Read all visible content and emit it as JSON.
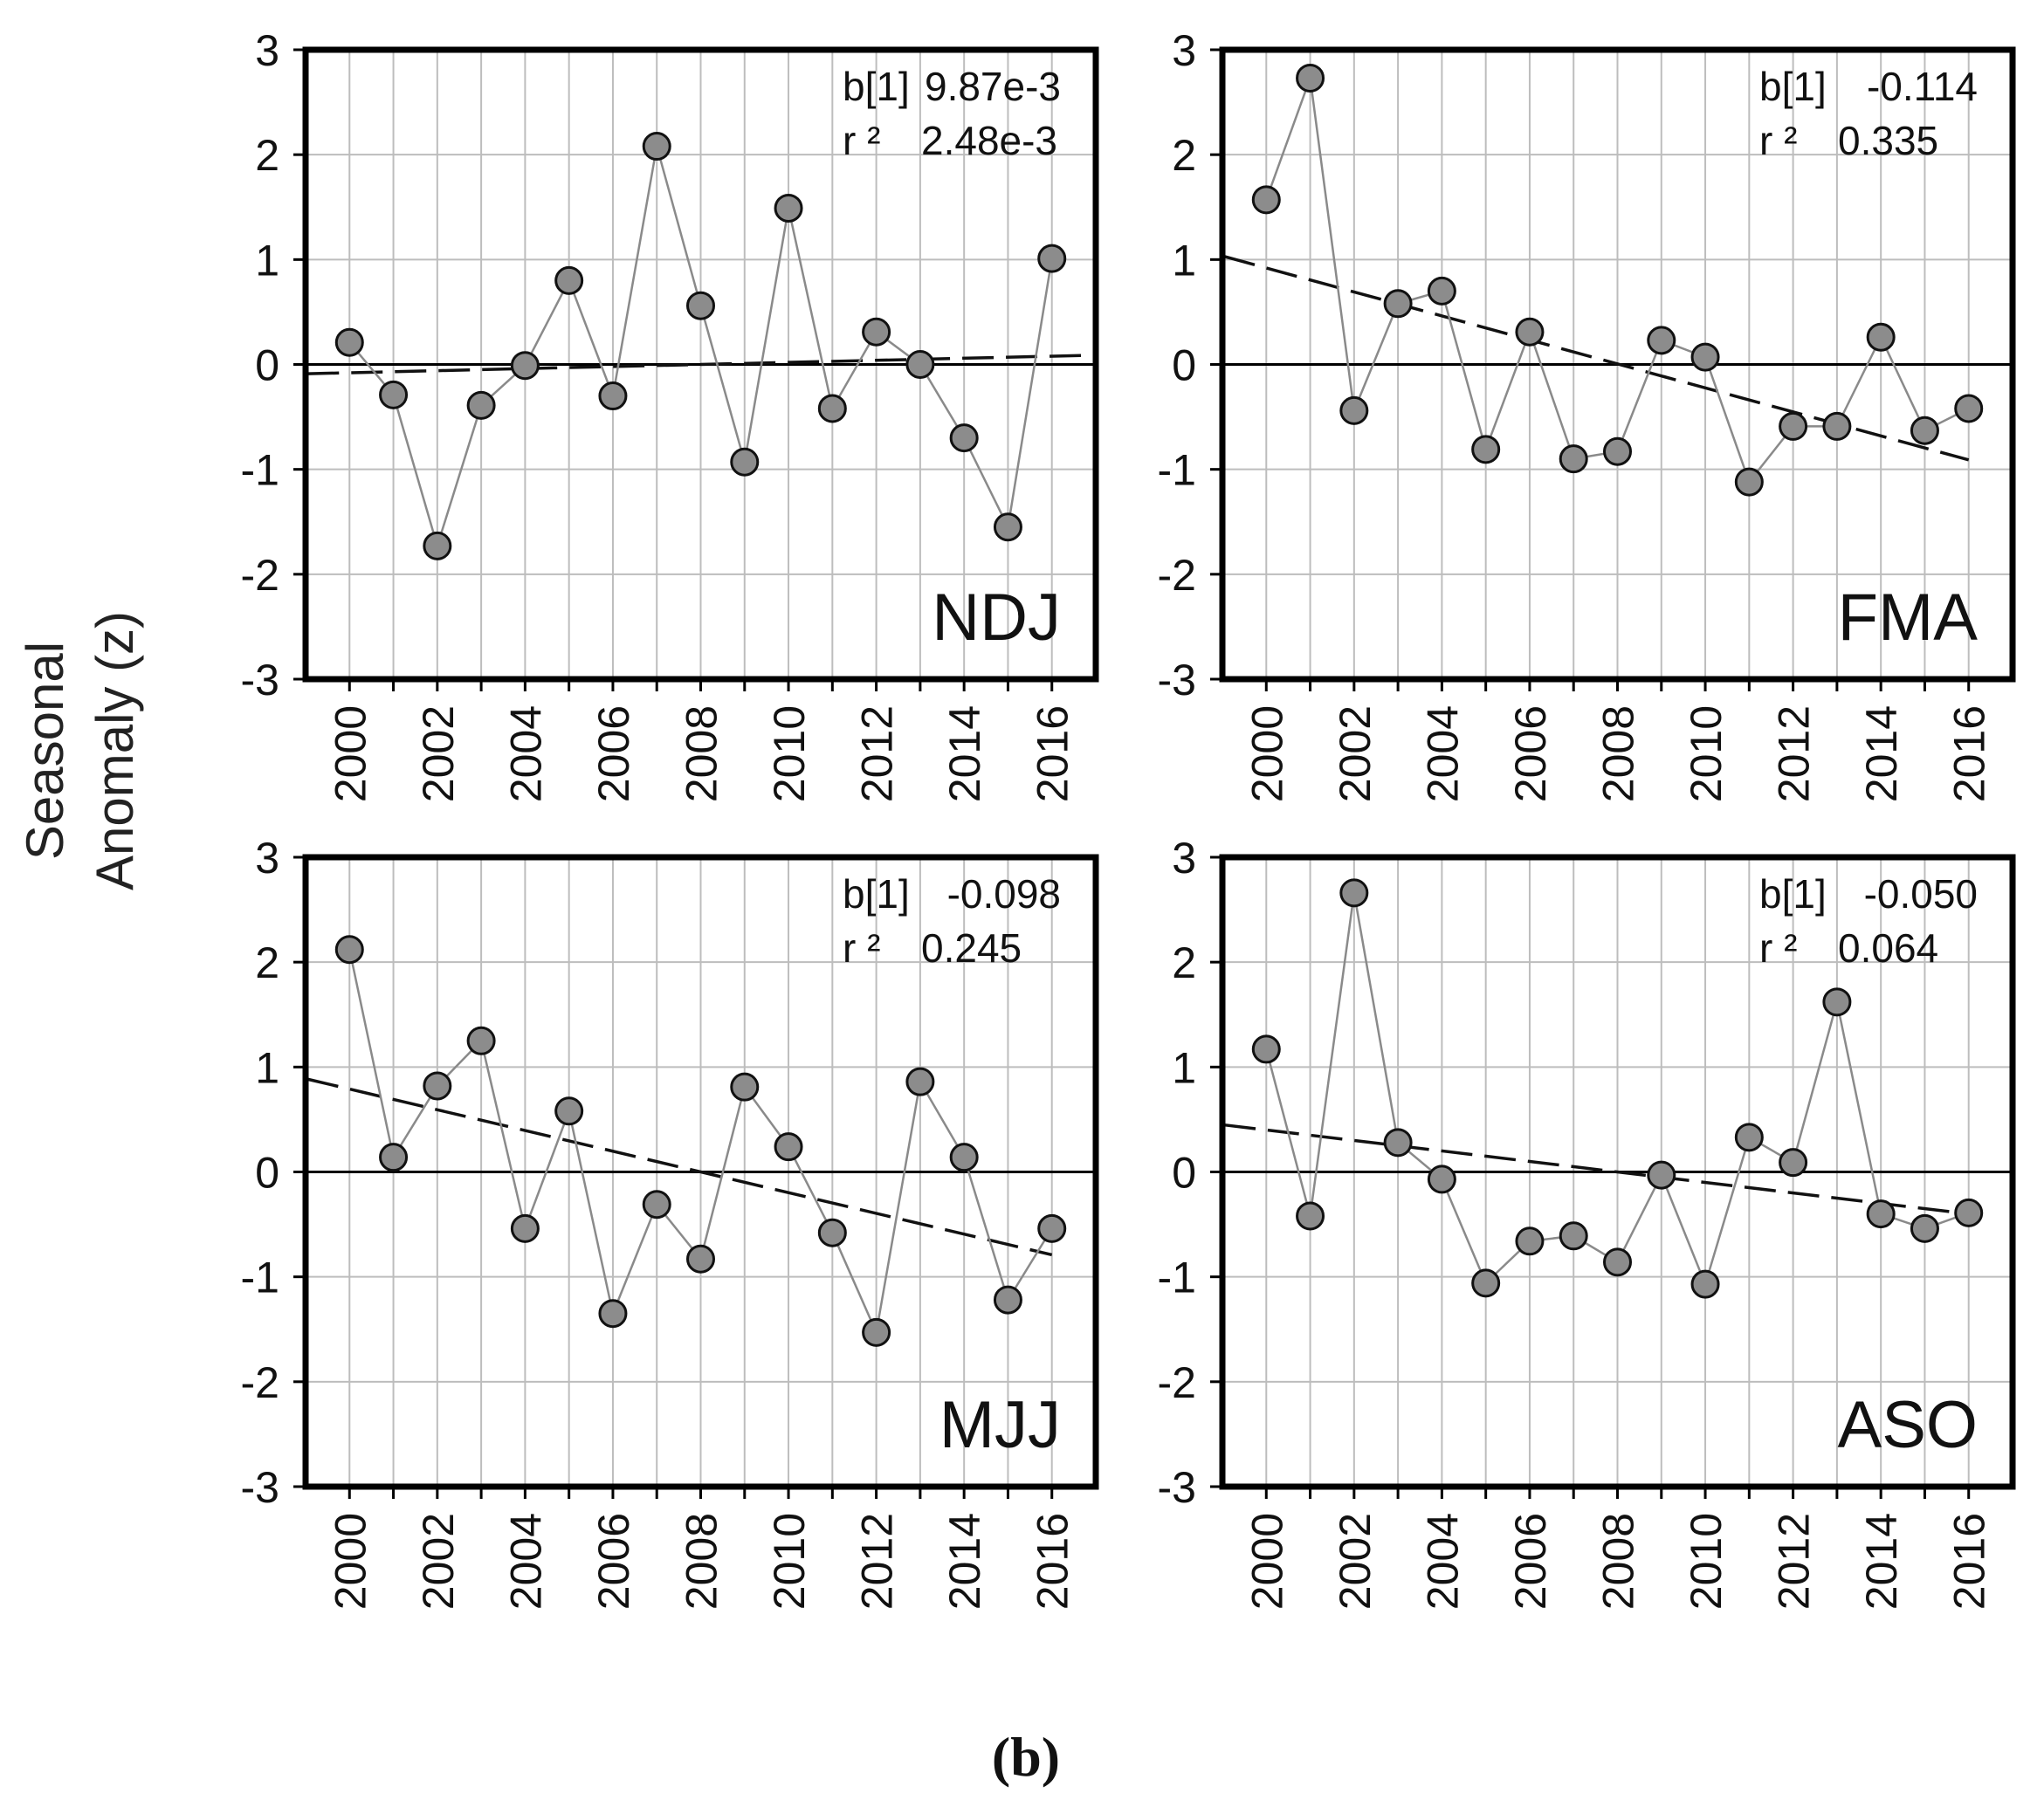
{
  "figure": {
    "y_axis_label": [
      "Seasonal",
      "Anomaly (z)"
    ],
    "caption": "(b)",
    "colors": {
      "marker_fill": "#8c8c8c",
      "marker_stroke": "#111111",
      "grid": "#bdbdbd",
      "series_line": "#8a8a8a",
      "trend_line": "#111111",
      "frame": "#000000"
    }
  },
  "chart_data": [
    {
      "type": "line",
      "season": "NDJ",
      "x": [
        2000,
        2001,
        2002,
        2003,
        2004,
        2005,
        2006,
        2007,
        2008,
        2009,
        2010,
        2011,
        2012,
        2013,
        2014,
        2015,
        2016
      ],
      "values": [
        0.21,
        -0.29,
        -1.73,
        -0.39,
        -0.01,
        0.8,
        -0.3,
        2.08,
        0.56,
        -0.93,
        1.49,
        -0.42,
        0.31,
        0.0,
        -0.7,
        -1.55,
        1.01
      ],
      "trend": [
        -0.079,
        0.079
      ],
      "stats": {
        "b_label": "b[1]",
        "b_value": "9.87e-3",
        "r2_label": "r ²",
        "r2_value": "2.48e-3"
      },
      "xticks": [
        2000,
        2002,
        2004,
        2006,
        2008,
        2010,
        2012,
        2014,
        2016
      ],
      "yticks": [
        3,
        2,
        1,
        0,
        -1,
        -2,
        -3
      ],
      "xlim": [
        1999,
        2017
      ],
      "ylim": [
        -3,
        3
      ],
      "grid": true
    },
    {
      "type": "line",
      "season": "FMA",
      "x": [
        2000,
        2001,
        2002,
        2003,
        2004,
        2005,
        2006,
        2007,
        2008,
        2009,
        2010,
        2011,
        2012,
        2013,
        2014,
        2015,
        2016
      ],
      "values": [
        1.57,
        2.73,
        -0.44,
        0.58,
        0.7,
        -0.81,
        0.31,
        -0.9,
        -0.83,
        0.23,
        0.07,
        -1.12,
        -0.59,
        -0.59,
        0.26,
        -0.63,
        -0.42
      ],
      "trend": [
        0.92,
        -0.91
      ],
      "stats": {
        "b_label": "b[1]",
        "b_value": "-0.114",
        "r2_label": "r ²",
        "r2_value": "0.335"
      },
      "xticks": [
        2000,
        2002,
        2004,
        2006,
        2008,
        2010,
        2012,
        2014,
        2016
      ],
      "yticks": [
        3,
        2,
        1,
        0,
        -1,
        -2,
        -3
      ],
      "xlim": [
        1999,
        2017
      ],
      "ylim": [
        -3,
        3
      ],
      "grid": true
    },
    {
      "type": "line",
      "season": "MJJ",
      "x": [
        2000,
        2001,
        2002,
        2003,
        2004,
        2005,
        2006,
        2007,
        2008,
        2009,
        2010,
        2011,
        2012,
        2013,
        2014,
        2015,
        2016
      ],
      "values": [
        2.12,
        0.14,
        0.82,
        1.25,
        -0.54,
        0.58,
        -1.35,
        -0.31,
        -0.83,
        0.81,
        0.24,
        -0.58,
        -1.53,
        0.86,
        0.14,
        -1.22,
        -0.54
      ],
      "trend": [
        0.79,
        -0.79
      ],
      "stats": {
        "b_label": "b[1]",
        "b_value": "-0.098",
        "r2_label": "r ²",
        "r2_value": "0.245"
      },
      "xticks": [
        2000,
        2002,
        2004,
        2006,
        2008,
        2010,
        2012,
        2014,
        2016
      ],
      "yticks": [
        3,
        2,
        1,
        0,
        -1,
        -2,
        -3
      ],
      "xlim": [
        1999,
        2017
      ],
      "ylim": [
        -3,
        3
      ],
      "grid": true
    },
    {
      "type": "line",
      "season": "ASO",
      "x": [
        2000,
        2001,
        2002,
        2003,
        2004,
        2005,
        2006,
        2007,
        2008,
        2009,
        2010,
        2011,
        2012,
        2013,
        2014,
        2015,
        2016
      ],
      "values": [
        1.17,
        -0.42,
        2.66,
        0.28,
        -0.07,
        -1.06,
        -0.66,
        -0.61,
        -0.86,
        -0.03,
        -1.07,
        0.33,
        0.09,
        1.62,
        -0.4,
        -0.54,
        -0.39
      ],
      "trend": [
        0.4,
        -0.4
      ],
      "stats": {
        "b_label": "b[1]",
        "b_value": "-0.050",
        "r2_label": "r ²",
        "r2_value": "0.064"
      },
      "xticks": [
        2000,
        2002,
        2004,
        2006,
        2008,
        2010,
        2012,
        2014,
        2016
      ],
      "yticks": [
        3,
        2,
        1,
        0,
        -1,
        -2,
        -3
      ],
      "xlim": [
        1999,
        2017
      ],
      "ylim": [
        -3,
        3
      ],
      "grid": true
    }
  ]
}
